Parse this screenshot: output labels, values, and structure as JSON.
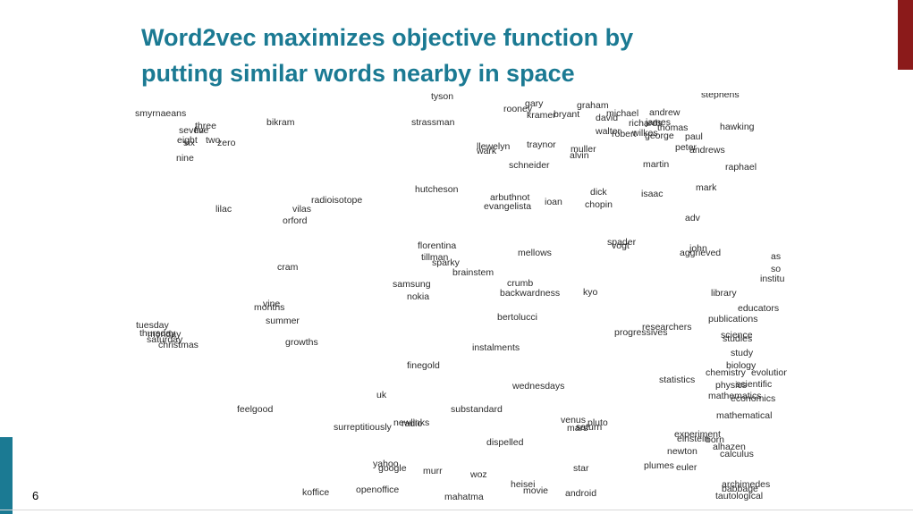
{
  "slide": {
    "title_line1": "Word2vec maximizes objective function by",
    "title_line2": "putting similar words nearby in space",
    "page_number": "6",
    "accent_color": "#1b7a93",
    "accent_top_right_color": "#8b1a1a"
  },
  "words": [
    "tyson",
    "rooney",
    "gary",
    "kramer",
    "bryant",
    "graham",
    "michael",
    "andrew",
    "david",
    "stephens",
    "smyrnaeans",
    "bikram",
    "strassman",
    "richards",
    "james",
    "thomas",
    "hawking",
    "three",
    "seven",
    "five",
    "walter",
    "robert",
    "wilkes",
    "george",
    "paul",
    "eight",
    "two",
    "zero",
    "six",
    "llewelyn",
    "wark",
    "traynor",
    "muller",
    "alvin",
    "peter",
    "andrews",
    "nine",
    "schneider",
    "martin",
    "raphael",
    "hutcheson",
    "mark",
    "dick",
    "isaac",
    "arbuthnot",
    "radioisotope",
    "ioan",
    "lilac",
    "vilas",
    "evangelista",
    "chopin",
    "orford",
    "adv",
    "spader",
    "vogt",
    "florentina",
    "john",
    "aggrieved",
    "tillman",
    "mellows",
    "sparky",
    "as",
    "cram",
    "brainstem",
    "so",
    "samsung",
    "crumb",
    "institu",
    "nokia",
    "backwardness",
    "kyo",
    "library",
    "vine",
    "months",
    "educators",
    "summer",
    "bertolucci",
    "tuesday",
    "publications",
    "thursday",
    "researchers",
    "progressives",
    "monday",
    "science",
    "saturday",
    "christmas",
    "growths",
    "studies",
    "instalments",
    "study",
    "finegold",
    "biology",
    "chemistry",
    "evolution",
    "physics",
    "scientific",
    "wednesdays",
    "statistics",
    "mathematics",
    "economics",
    "uk",
    "feelgood",
    "substandard",
    "mathematical",
    "venus",
    "pluto",
    "surreptitiously",
    "newlinks",
    "radio",
    "mars",
    "saturn",
    "experiment",
    "einstein",
    "born",
    "dispelled",
    "alhazen",
    "calculus",
    "newton",
    "yahoo",
    "google",
    "murr",
    "star",
    "plumes",
    "euler",
    "woz",
    "heisei",
    "archimedes",
    "babbage",
    "koffice",
    "openoffice",
    "movie",
    "android",
    "mahatma",
    "tautological"
  ]
}
